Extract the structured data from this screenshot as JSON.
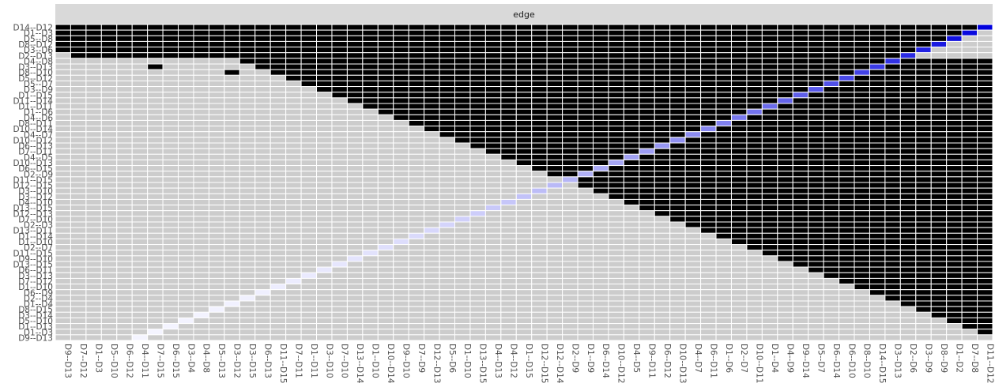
{
  "chart_data": {
    "type": "heatmap",
    "facet_label": "edge",
    "x": [
      "D9--D13",
      "D7--D12",
      "D1--D3",
      "D5--D10",
      "D6--D12",
      "D4--D11",
      "D7--D15",
      "D6--D15",
      "D3--D4",
      "D4--D8",
      "D5--D13",
      "D3--D12",
      "D3--D15",
      "D6--D13",
      "D11--D15",
      "D7--D11",
      "D1--D11",
      "D3--D10",
      "D7--D10",
      "D13--D14",
      "D1--D10",
      "D10--D14",
      "D9--D10",
      "D7--D9",
      "D12--D13",
      "D5--D6",
      "D1--D10",
      "D13--D15",
      "D4--D13",
      "D4--D12",
      "D1--D15",
      "D12--D15",
      "D12--D14",
      "D2--D9",
      "D1--D9",
      "D6--D14",
      "D10--D12",
      "D4--D5",
      "D9--D11",
      "D6--D12",
      "D10--D13",
      "D4--D7",
      "D6--D11",
      "D1--D6",
      "D2--D7",
      "D10--D11",
      "D1--D4",
      "D4--D9",
      "D9--D14",
      "D5--D7",
      "D6--D14",
      "D6--D10",
      "D8--D10",
      "D14--D15",
      "D3--D13",
      "D2--D6",
      "D3--D9",
      "D8--D9",
      "D1--D2",
      "D7--D8",
      "D11--D12"
    ],
    "y": [
      "D14--D12",
      "D1--D3",
      "D5--D8",
      "D8--D12",
      "D3--D6",
      "D2--D13",
      "D4--D8",
      "D3--D13",
      "D8--D10",
      "D5--D12",
      "D5--D7",
      "D3--D9",
      "D1--D15",
      "D11--D14",
      "D1--D11",
      "D1--D6",
      "D4--D6",
      "D8--D11",
      "D10--D14",
      "D4--D7",
      "D10--D12",
      "D6--D13",
      "D7--D11",
      "D4--D5",
      "D10--D13",
      "D6--D15",
      "D2--D9",
      "D11--D15",
      "D12--D15",
      "D3--D10",
      "D3--D12",
      "D4--D10",
      "D13--D15",
      "D12--D13",
      "D7--D10",
      "D2--D3",
      "D13--D11",
      "D1--D14",
      "D1--D10",
      "D2--D7",
      "D11--D15",
      "D9--D10",
      "D13--D15",
      "D6--D11",
      "D3--D13",
      "D7--D12",
      "D1--D10",
      "D6--D9",
      "D2--D4",
      "D1--D4",
      "D8--D15",
      "D3--D14",
      "D5--D10",
      "D1--D13",
      "D1--D3",
      "D9--D13"
    ],
    "black_rows": [
      [
        0,
        60
      ],
      [
        0,
        59
      ],
      [
        0,
        58
      ],
      [
        0,
        58
      ],
      [
        0,
        57
      ],
      [
        1,
        55
      ],
      [
        12,
        54
      ],
      [
        13,
        52
      ],
      [
        14,
        51
      ],
      [
        15,
        50
      ],
      [
        16,
        49
      ],
      [
        17,
        48
      ],
      [
        18,
        47
      ],
      [
        19,
        46
      ],
      [
        20,
        45
      ],
      [
        21,
        44
      ],
      [
        22,
        43
      ],
      [
        23,
        42
      ],
      [
        24,
        41
      ],
      [
        25,
        40
      ],
      [
        26,
        39
      ],
      [
        27,
        38
      ],
      [
        28,
        37
      ],
      [
        29,
        36
      ],
      [
        30,
        35
      ],
      [
        31,
        34
      ],
      [
        32,
        33
      ],
      [
        33,
        32
      ],
      [
        34,
        31
      ],
      [
        35,
        30
      ],
      [
        36,
        29
      ],
      [
        37,
        28
      ],
      [
        38,
        27
      ],
      [
        39,
        26
      ],
      [
        40,
        25
      ],
      [
        41,
        24
      ],
      [
        42,
        23
      ],
      [
        43,
        22
      ],
      [
        44,
        21
      ],
      [
        45,
        20
      ],
      [
        46,
        19
      ],
      [
        47,
        18
      ],
      [
        48,
        17
      ],
      [
        49,
        16
      ],
      [
        50,
        15
      ],
      [
        51,
        14
      ],
      [
        52,
        13
      ],
      [
        53,
        12
      ],
      [
        54,
        11
      ],
      [
        55,
        10
      ],
      [
        56,
        9
      ],
      [
        57,
        8
      ],
      [
        58,
        7
      ],
      [
        59,
        6
      ],
      [
        60,
        5
      ],
      [
        61,
        4
      ]
    ],
    "extra_black": [
      [
        5,
        4
      ],
      [
        5,
        9
      ],
      [
        7,
        6
      ],
      [
        8,
        11
      ],
      [
        8,
        28
      ],
      [
        6,
        44
      ],
      [
        7,
        57
      ],
      [
        4,
        56
      ]
    ],
    "diagonal_color_low": "#f4f4ff",
    "diagonal_color_high": "#0000dd",
    "cell_on_color": "#000000",
    "cell_off_color": "#cccccc",
    "grid_color": "#ffffff",
    "strip_color": "#d9d9d9",
    "legend": "none"
  }
}
